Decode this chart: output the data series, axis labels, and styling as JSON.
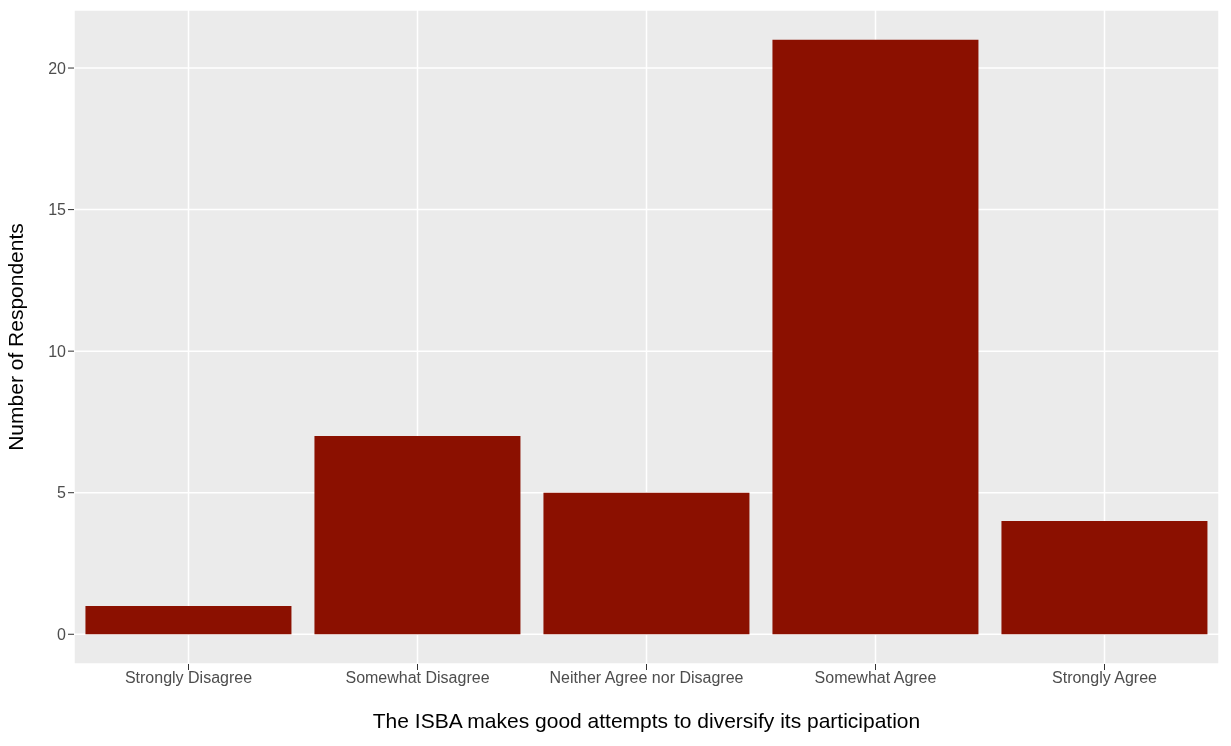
{
  "chart_data": {
    "type": "bar",
    "xlabel": "The ISBA makes good attempts to diversify its participation",
    "ylabel": "Number of Respondents",
    "categories": [
      "Strongly Disagree",
      "Somewhat Disagree",
      "Neither Agree nor Disagree",
      "Somewhat Agree",
      "Strongly Agree"
    ],
    "values": [
      1,
      7,
      5,
      21,
      4
    ],
    "color": "#8b1000",
    "ylim": [
      -1.05,
      22.05
    ],
    "yticks": [
      0,
      5,
      10,
      15,
      20
    ],
    "grid": true
  }
}
